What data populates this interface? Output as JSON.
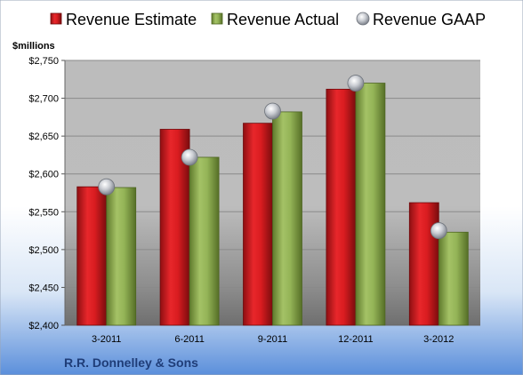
{
  "chart_data": {
    "type": "bar",
    "ylabel": "$millions",
    "categories": [
      "3-2011",
      "6-2011",
      "9-2011",
      "12-2011",
      "3-2012"
    ],
    "series": [
      {
        "name": "Revenue Estimate",
        "kind": "bar",
        "color": "#d7191c",
        "values": [
          2583,
          2659,
          2667,
          2712,
          2562
        ]
      },
      {
        "name": "Revenue Actual",
        "kind": "bar",
        "color": "#8fae4e",
        "values": [
          2582,
          2622,
          2682,
          2720,
          2523
        ]
      },
      {
        "name": "Revenue GAAP",
        "kind": "marker",
        "color": "#b8bcc4",
        "values": [
          2583,
          2622,
          2683,
          2720,
          2525
        ]
      }
    ],
    "ylim": [
      2400,
      2750
    ],
    "ytick_labels": [
      "$2,400",
      "$2,450",
      "$2,500",
      "$2,550",
      "$2,600",
      "$2,650",
      "$2,700",
      "$2,750"
    ],
    "grid": true,
    "legend_position": "top"
  },
  "company_name": "R.R. Donnelley & Sons"
}
